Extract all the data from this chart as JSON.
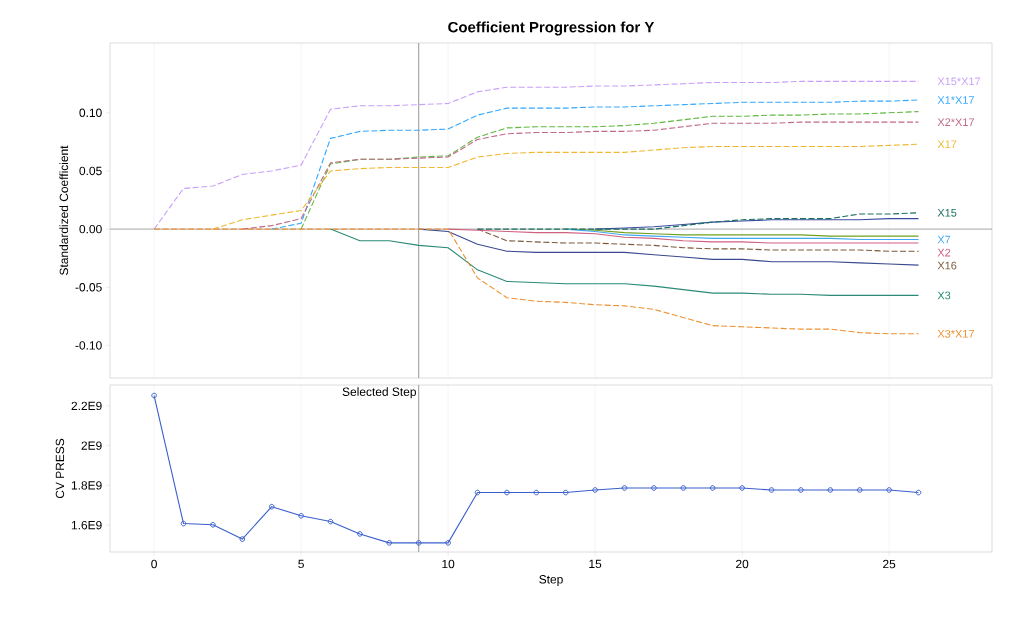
{
  "chart_data": [
    {
      "type": "line",
      "title": "Coefficient Progression for Y",
      "ylabel": "Standardized Coefficient",
      "x": [
        0,
        1,
        2,
        3,
        4,
        5,
        6,
        7,
        8,
        9,
        10,
        11,
        12,
        13,
        14,
        15,
        16,
        17,
        18,
        19,
        20,
        21,
        22,
        23,
        24,
        25,
        26
      ],
      "xlim": [
        -1.5,
        28.5
      ],
      "xticks": [
        0,
        5,
        10,
        15,
        20,
        25
      ],
      "ylim": [
        -0.128,
        0.16
      ],
      "yticks": [
        {
          "value": -0.1,
          "label": "-0.10"
        },
        {
          "value": -0.05,
          "label": "-0.05"
        },
        {
          "value": 0,
          "label": "0.00"
        },
        {
          "value": 0.05,
          "label": "0.05"
        },
        {
          "value": 0.1,
          "label": "0.10"
        }
      ],
      "tick_labels": "y",
      "grid": "x",
      "line_style": "dashed",
      "ref_lines": [
        {
          "axis": "x",
          "value": 9
        },
        {
          "axis": "y",
          "value": 0
        }
      ],
      "series": [
        {
          "name": "X15*X17",
          "color": "#c8a0f8",
          "values": [
            0,
            0.035,
            0.037,
            0.047,
            0.05,
            0.055,
            0.103,
            0.106,
            0.106,
            0.107,
            0.108,
            0.118,
            0.122,
            0.122,
            0.122,
            0.123,
            0.123,
            0.124,
            0.125,
            0.126,
            0.126,
            0.126,
            0.127,
            0.127,
            0.127,
            0.127,
            0.127
          ]
        },
        {
          "name": "X1*X17",
          "color": "#33a8ff",
          "values": [
            null,
            null,
            null,
            null,
            0,
            0.005,
            0.078,
            0.084,
            0.085,
            0.085,
            0.086,
            0.098,
            0.104,
            0.104,
            0.104,
            0.105,
            0.105,
            0.106,
            0.107,
            0.108,
            0.109,
            0.109,
            0.109,
            0.109,
            0.11,
            0.11,
            0.111
          ]
        },
        {
          "color": "#60b840",
          "values": [
            null,
            null,
            null,
            null,
            null,
            0,
            0.056,
            0.06,
            0.06,
            0.062,
            0.063,
            0.079,
            0.087,
            0.088,
            0.088,
            0.088,
            0.089,
            0.091,
            0.094,
            0.097,
            0.097,
            0.098,
            0.098,
            0.099,
            0.099,
            0.1,
            0.101
          ]
        },
        {
          "name": "X2*X17",
          "color": "#c06888",
          "values": [
            null,
            null,
            null,
            0,
            0.003,
            0.009,
            0.057,
            0.06,
            0.06,
            0.061,
            0.062,
            0.077,
            0.082,
            0.083,
            0.083,
            0.084,
            0.084,
            0.085,
            0.088,
            0.091,
            0.091,
            0.091,
            0.092,
            0.092,
            0.092,
            0.092,
            0.092
          ]
        },
        {
          "name": "X17",
          "color": "#eeb830",
          "values": [
            null,
            null,
            0,
            0.008,
            0.012,
            0.016,
            0.05,
            0.052,
            0.053,
            0.053,
            0.053,
            0.062,
            0.065,
            0.066,
            0.066,
            0.066,
            0.066,
            0.068,
            0.07,
            0.071,
            0.071,
            0.071,
            0.071,
            0.071,
            0.071,
            0.072,
            0.073
          ]
        },
        {
          "color": "#3a4aa0",
          "line_style": "solid",
          "values": [
            null,
            null,
            null,
            null,
            null,
            null,
            null,
            null,
            null,
            null,
            null,
            null,
            null,
            null,
            null,
            0,
            0.001,
            0.002,
            0.004,
            0.006,
            0.007,
            0.008,
            0.008,
            0.008,
            0.008,
            0.009,
            0.009
          ]
        },
        {
          "color": "#70a020",
          "line_style": "solid",
          "values": [
            null,
            null,
            null,
            null,
            null,
            null,
            null,
            null,
            null,
            null,
            null,
            null,
            null,
            null,
            0,
            -0.001,
            -0.003,
            -0.004,
            -0.005,
            -0.005,
            -0.005,
            -0.005,
            -0.005,
            -0.006,
            -0.006,
            -0.006,
            -0.006
          ]
        },
        {
          "name": "X16",
          "color": "#7a5a3a",
          "values": [
            null,
            null,
            null,
            null,
            null,
            null,
            null,
            null,
            null,
            null,
            null,
            0,
            -0.01,
            -0.011,
            -0.012,
            -0.012,
            -0.013,
            -0.014,
            -0.016,
            -0.017,
            -0.017,
            -0.018,
            -0.018,
            -0.018,
            -0.018,
            -0.019,
            -0.019
          ]
        },
        {
          "name": "X2",
          "color": "#d06080",
          "line_style": "solid",
          "values": [
            null,
            null,
            null,
            null,
            null,
            null,
            null,
            null,
            null,
            null,
            0,
            -0.001,
            -0.002,
            -0.003,
            -0.003,
            -0.004,
            -0.007,
            -0.008,
            -0.01,
            -0.011,
            -0.011,
            -0.012,
            -0.012,
            -0.012,
            -0.012,
            -0.012,
            -0.012
          ]
        },
        {
          "name": "X7",
          "color": "#40a8f0",
          "line_style": "solid",
          "values": [
            null,
            null,
            null,
            null,
            null,
            null,
            null,
            null,
            null,
            null,
            null,
            null,
            null,
            null,
            0,
            -0.002,
            -0.005,
            -0.006,
            -0.007,
            -0.008,
            -0.008,
            -0.008,
            -0.008,
            -0.008,
            -0.009,
            -0.009,
            -0.009
          ]
        },
        {
          "color": "#3a4a90",
          "line_style": "solid",
          "values": [
            null,
            null,
            null,
            null,
            null,
            null,
            null,
            null,
            null,
            0,
            -0.002,
            -0.013,
            -0.019,
            -0.02,
            -0.02,
            -0.02,
            -0.02,
            -0.022,
            -0.024,
            -0.026,
            -0.026,
            -0.028,
            -0.028,
            -0.028,
            -0.029,
            -0.03,
            -0.031
          ]
        },
        {
          "name": "X3",
          "color": "#2a8a78",
          "line_style": "solid",
          "values": [
            null,
            null,
            null,
            null,
            null,
            null,
            0,
            -0.01,
            -0.01,
            -0.014,
            -0.016,
            -0.035,
            -0.045,
            -0.046,
            -0.047,
            -0.047,
            -0.047,
            -0.049,
            -0.052,
            -0.055,
            -0.055,
            -0.056,
            -0.056,
            -0.057,
            -0.057,
            -0.057,
            -0.057
          ]
        },
        {
          "name": "X15",
          "color": "#1a7060",
          "values": [
            null,
            null,
            null,
            null,
            null,
            null,
            null,
            null,
            null,
            null,
            null,
            0,
            0,
            0,
            0,
            0,
            0,
            0,
            0.003,
            0.006,
            0.008,
            0.009,
            0.009,
            0.009,
            0.013,
            0.013,
            0.014
          ]
        },
        {
          "name": "X3*X17",
          "color": "#ee9030",
          "values": [
            0,
            0,
            0,
            0,
            0,
            0,
            0,
            0,
            0,
            0,
            0,
            -0.042,
            -0.059,
            -0.062,
            -0.063,
            -0.065,
            -0.066,
            -0.069,
            -0.076,
            -0.083,
            -0.084,
            -0.085,
            -0.086,
            -0.086,
            -0.089,
            -0.09,
            -0.09
          ]
        }
      ]
    },
    {
      "type": "line",
      "xlabel": "Step",
      "ylabel": "CV PRESS",
      "x": [
        0,
        1,
        2,
        3,
        4,
        5,
        6,
        7,
        8,
        9,
        10,
        11,
        12,
        13,
        14,
        15,
        16,
        17,
        18,
        19,
        20,
        21,
        22,
        23,
        24,
        25,
        26
      ],
      "xlim": [
        -1.5,
        28.5
      ],
      "xticks": [
        0,
        5,
        10,
        15,
        20,
        25
      ],
      "ylim": [
        1465000000,
        2305000000
      ],
      "yticks": [
        {
          "value": 1600000000,
          "label": "1.6E9"
        },
        {
          "value": 1800000000,
          "label": "1.8E9"
        },
        {
          "value": 2000000000,
          "label": "2E9"
        },
        {
          "value": 2200000000,
          "label": "2.2E9"
        }
      ],
      "grid": "x",
      "marker": "circle",
      "line_style": "solid",
      "ref_lines": [
        {
          "axis": "x",
          "value": 9,
          "label": "Selected Step"
        }
      ],
      "series": [
        {
          "color": "#3a5fcd",
          "values": [
            2252000000,
            1608000000,
            1602000000,
            1530000000,
            1693000000,
            1647000000,
            1618000000,
            1556000000,
            1511000000,
            1511000000,
            1511000000,
            1764000000,
            1764000000,
            1764000000,
            1764000000,
            1777000000,
            1787000000,
            1787000000,
            1787000000,
            1787000000,
            1787000000,
            1777000000,
            1777000000,
            1777000000,
            1777000000,
            1777000000,
            1764000000
          ]
        }
      ]
    }
  ]
}
